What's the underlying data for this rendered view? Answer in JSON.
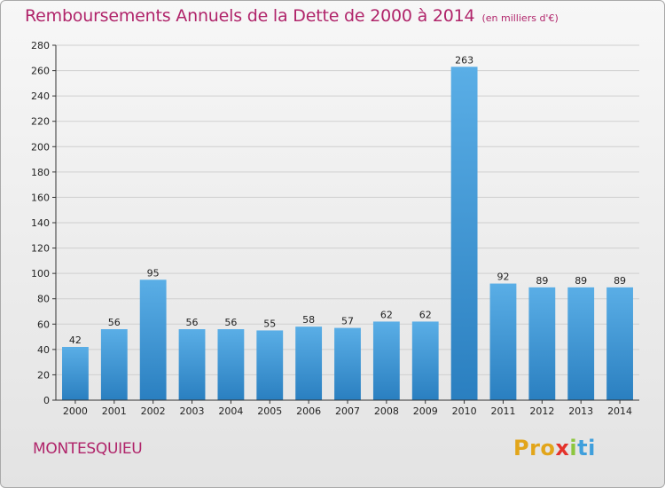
{
  "header": {
    "title": "Remboursements Annuels de la Dette de 2000 à 2014",
    "unit": "(en milliers d'€)"
  },
  "footer": {
    "commune": "MONTESQUIEU",
    "logo_parts": [
      "Pro",
      "x",
      "i",
      "ti"
    ]
  },
  "colors": {
    "title": "#b0246a",
    "bar_light": "#5aaee6",
    "bar_dark": "#2a7fc0",
    "grid": "#cfcfcf",
    "axis": "#333333"
  },
  "chart_data": {
    "type": "bar",
    "title": "Remboursements Annuels de la Dette de 2000 à 2014",
    "subtitle": "(en milliers d'€)",
    "categories": [
      "2000",
      "2001",
      "2002",
      "2003",
      "2004",
      "2005",
      "2006",
      "2007",
      "2008",
      "2009",
      "2010",
      "2011",
      "2012",
      "2013",
      "2014"
    ],
    "values": [
      42,
      56,
      95,
      56,
      56,
      55,
      58,
      57,
      62,
      62,
      263,
      92,
      89,
      89,
      89
    ],
    "ylim": [
      0,
      280
    ],
    "yticks": [
      0,
      20,
      40,
      60,
      80,
      100,
      120,
      140,
      160,
      180,
      200,
      220,
      240,
      260,
      280
    ],
    "grid": true,
    "data_labels": true
  }
}
